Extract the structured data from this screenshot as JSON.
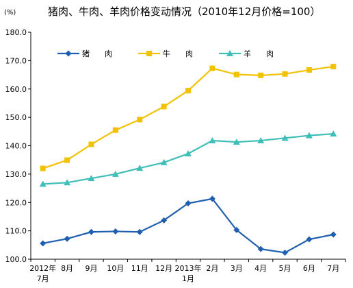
{
  "chart_data": {
    "type": "line",
    "title": "猪肉、牛肉、羊肉价格变动情况（2010年12月价格=100）",
    "ylabel_unit": "(%)",
    "categories": [
      [
        "2012年",
        "7月"
      ],
      [
        "8月"
      ],
      [
        "9月"
      ],
      [
        "10月"
      ],
      [
        "11月"
      ],
      [
        "12月"
      ],
      [
        "2013年",
        "1月"
      ],
      [
        "2月"
      ],
      [
        "3月"
      ],
      [
        "4月"
      ],
      [
        "5月"
      ],
      [
        "6月"
      ],
      [
        "7月"
      ]
    ],
    "ylim": [
      100,
      180
    ],
    "yticks": [
      "100.0",
      "110.0",
      "120.0",
      "130.0",
      "140.0",
      "150.0",
      "160.0",
      "170.0",
      "180.0"
    ],
    "grid": false,
    "legend_position": "top-left",
    "series": [
      {
        "name": "猪　　肉",
        "color": "#1F5FB0",
        "marker": "diamond",
        "values": [
          105.6,
          107.2,
          109.6,
          109.8,
          109.6,
          113.7,
          119.7,
          121.3,
          110.3,
          103.6,
          102.3,
          107.0,
          108.7
        ]
      },
      {
        "name": "牛　　肉",
        "color": "#F2C200",
        "marker": "square",
        "values": [
          132.0,
          134.9,
          140.5,
          145.5,
          149.2,
          153.8,
          159.4,
          167.3,
          165.1,
          164.8,
          165.3,
          166.7,
          167.9
        ]
      },
      {
        "name": "羊　　肉",
        "color": "#3FBFB8",
        "marker": "triangle",
        "values": [
          126.5,
          127.0,
          128.5,
          130.0,
          132.1,
          134.1,
          137.2,
          141.8,
          141.3,
          141.8,
          142.7,
          143.6,
          144.2
        ]
      }
    ]
  }
}
